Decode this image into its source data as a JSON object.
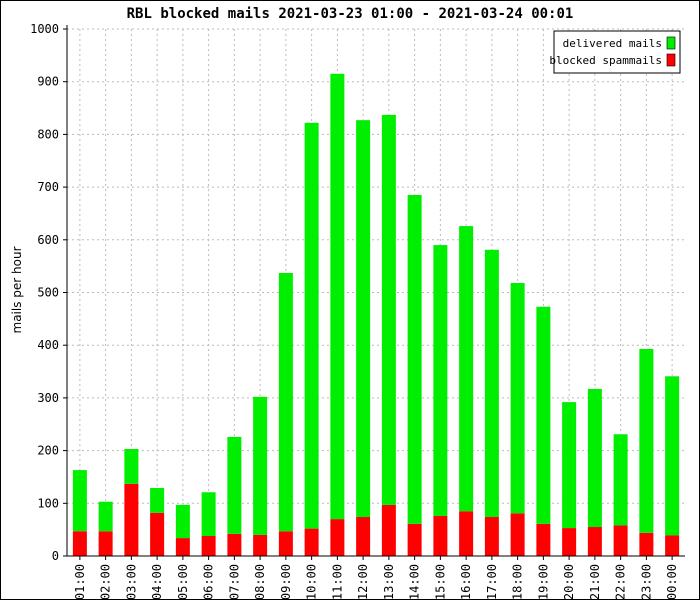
{
  "chart_data": {
    "type": "bar",
    "stacked": true,
    "title": "RBL blocked mails 2021-03-23 01:00 - 2021-03-24 00:01",
    "xlabel": "",
    "ylabel": "mails per hour",
    "ylim": [
      0,
      1000
    ],
    "yticks": [
      0,
      100,
      200,
      300,
      400,
      500,
      600,
      700,
      800,
      900,
      1000
    ],
    "grid": true,
    "legend_position": "top-right",
    "categories": [
      "01:00",
      "02:00",
      "03:00",
      "04:00",
      "05:00",
      "06:00",
      "07:00",
      "08:00",
      "09:00",
      "10:00",
      "11:00",
      "12:00",
      "13:00",
      "14:00",
      "15:00",
      "16:00",
      "17:00",
      "18:00",
      "19:00",
      "20:00",
      "21:00",
      "22:00",
      "23:00",
      "00:00"
    ],
    "series": [
      {
        "name": "blocked spammails",
        "color": "#ff0000",
        "values": [
          47,
          47,
          137,
          82,
          34,
          38,
          42,
          40,
          47,
          52,
          70,
          74,
          97,
          61,
          76,
          85,
          74,
          81,
          61,
          53,
          55,
          58,
          44,
          39
        ]
      },
      {
        "name": "delivered mails",
        "color": "#00ee00",
        "values": [
          116,
          56,
          66,
          47,
          63,
          83,
          184,
          262,
          490,
          770,
          845,
          753,
          740,
          624,
          514,
          541,
          507,
          437,
          412,
          239,
          262,
          173,
          349,
          302
        ]
      }
    ],
    "legend": [
      {
        "name": "delivered mails",
        "color": "#00ee00"
      },
      {
        "name": "blocked spammails",
        "color": "#ff0000"
      }
    ]
  }
}
